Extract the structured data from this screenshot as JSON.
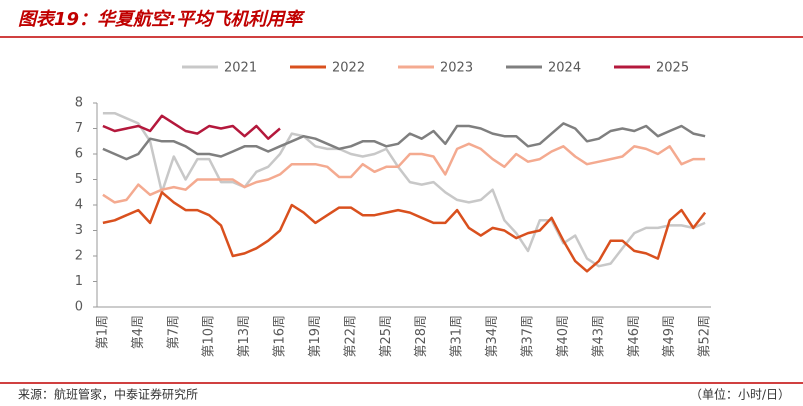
{
  "chart_data": {
    "type": "line",
    "title": "图表19：华夏航空:平均飞机利用率",
    "source": "来源：航班管家，中泰证券研究所",
    "unit": "（单位：小时/日）",
    "categories": [
      "第1周",
      null,
      null,
      "第4周",
      null,
      null,
      "第7周",
      null,
      null,
      "第10周",
      null,
      null,
      "第13周",
      null,
      null,
      "第16周",
      null,
      null,
      "第19周",
      null,
      null,
      "第22周",
      null,
      null,
      "第25周",
      null,
      null,
      "第28周",
      null,
      null,
      "第31周",
      null,
      null,
      "第34周",
      null,
      null,
      "第37周",
      null,
      null,
      "第40周",
      null,
      null,
      "第43周",
      null,
      null,
      "第46周",
      null,
      null,
      "第49周",
      null,
      null,
      "第52周"
    ],
    "ylim": [
      0,
      8
    ],
    "yticks": [
      0,
      1,
      2,
      3,
      4,
      5,
      6,
      7,
      8
    ],
    "series": [
      {
        "name": "2021",
        "color": "#c8c8c8",
        "values": [
          7.6,
          7.6,
          7.4,
          7.2,
          6.5,
          4.5,
          5.9,
          5.0,
          5.8,
          5.8,
          4.9,
          4.9,
          4.7,
          5.3,
          5.5,
          6.0,
          6.8,
          6.7,
          6.3,
          6.2,
          6.2,
          6.0,
          5.9,
          6.0,
          6.2,
          5.5,
          4.9,
          4.8,
          4.9,
          4.5,
          4.2,
          4.1,
          4.2,
          4.6,
          3.4,
          2.9,
          2.2,
          3.4,
          3.4,
          2.5,
          2.8,
          1.9,
          1.6,
          1.7,
          2.3,
          2.9,
          3.1,
          3.1,
          3.2,
          3.2,
          3.1,
          3.3
        ]
      },
      {
        "name": "2022",
        "color": "#d9501e",
        "values": [
          3.3,
          3.4,
          3.6,
          3.8,
          3.3,
          4.5,
          4.1,
          3.8,
          3.8,
          3.6,
          3.2,
          2.0,
          2.1,
          2.3,
          2.6,
          3.0,
          4.0,
          3.7,
          3.3,
          3.6,
          3.9,
          3.9,
          3.6,
          3.6,
          3.7,
          3.8,
          3.7,
          3.5,
          3.3,
          3.3,
          3.8,
          3.1,
          2.8,
          3.1,
          3.0,
          2.7,
          2.9,
          3.0,
          3.5,
          2.6,
          1.8,
          1.4,
          1.8,
          2.6,
          2.6,
          2.2,
          2.1,
          1.9,
          3.4,
          3.8,
          3.1,
          3.7
        ]
      },
      {
        "name": "2023",
        "color": "#f4aa90",
        "values": [
          4.4,
          4.1,
          4.2,
          4.8,
          4.4,
          4.6,
          4.7,
          4.6,
          5.0,
          5.0,
          5.0,
          5.0,
          4.7,
          4.9,
          5.0,
          5.2,
          5.6,
          5.6,
          5.6,
          5.5,
          5.1,
          5.1,
          5.6,
          5.3,
          5.5,
          5.5,
          6.0,
          6.0,
          5.9,
          5.2,
          6.2,
          6.4,
          6.2,
          5.8,
          5.5,
          6.0,
          5.7,
          5.8,
          6.1,
          6.3,
          5.9,
          5.6,
          5.7,
          5.8,
          5.9,
          6.3,
          6.2,
          6.0,
          6.3,
          5.6,
          5.8,
          5.8
        ]
      },
      {
        "name": "2024",
        "color": "#7f7f7f",
        "values": [
          6.2,
          6.0,
          5.8,
          6.0,
          6.6,
          6.5,
          6.5,
          6.3,
          6.0,
          6.0,
          5.9,
          6.1,
          6.3,
          6.3,
          6.1,
          6.3,
          6.5,
          6.7,
          6.6,
          6.4,
          6.2,
          6.3,
          6.5,
          6.5,
          6.3,
          6.4,
          6.8,
          6.6,
          6.9,
          6.4,
          7.1,
          7.1,
          7.0,
          6.8,
          6.7,
          6.7,
          6.3,
          6.4,
          6.8,
          7.2,
          7.0,
          6.5,
          6.6,
          6.9,
          7.0,
          6.9,
          7.1,
          6.7,
          6.9,
          7.1,
          6.8,
          6.7
        ]
      },
      {
        "name": "2025",
        "color": "#b4183c",
        "values": [
          7.1,
          6.9,
          7.0,
          7.1,
          6.9,
          7.5,
          7.2,
          6.9,
          6.8,
          7.1,
          7.0,
          7.1,
          6.7,
          7.1,
          6.6,
          7.0,
          null,
          null,
          null,
          null,
          null,
          null,
          null,
          null,
          null,
          null,
          null,
          null,
          null,
          null,
          null,
          null,
          null,
          null,
          null,
          null,
          null,
          null,
          null,
          null,
          null,
          null,
          null,
          null,
          null,
          null,
          null,
          null,
          null,
          null,
          null,
          null
        ]
      }
    ]
  }
}
